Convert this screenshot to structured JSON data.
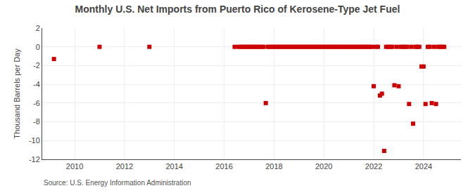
{
  "chart_data": {
    "type": "scatter",
    "title": "Monthly U.S. Net Imports from Puerto Rico of Kerosene-Type Jet Fuel",
    "ylabel": "Thousand Barrels per Day",
    "annotations": [
      "Source: U.S. Energy Information Administration"
    ],
    "color": "#cc0000",
    "marker": "square",
    "grid": true,
    "xlim": [
      2008.7,
      2025.5
    ],
    "xticks": [
      2010,
      2012,
      2014,
      2016,
      2018,
      2020,
      2022,
      2024
    ],
    "ylim": [
      -12,
      2
    ],
    "yticks": [
      2,
      0,
      -2,
      -4,
      -6,
      -8,
      -10,
      -12
    ],
    "x": [
      2009.17,
      2011.0,
      2013.0,
      2016.42,
      2016.58,
      2016.67,
      2016.75,
      2016.83,
      2016.92,
      2017.0,
      2017.08,
      2017.17,
      2017.25,
      2017.33,
      2017.42,
      2017.5,
      2017.58,
      2017.67,
      2017.75,
      2017.83,
      2017.92,
      2018.0,
      2018.08,
      2018.17,
      2018.25,
      2018.33,
      2018.42,
      2018.5,
      2018.58,
      2018.67,
      2018.75,
      2018.83,
      2018.92,
      2019.0,
      2019.08,
      2019.17,
      2019.25,
      2019.33,
      2019.42,
      2019.5,
      2019.58,
      2019.67,
      2019.75,
      2019.83,
      2019.92,
      2020.0,
      2020.08,
      2020.17,
      2020.25,
      2020.33,
      2020.42,
      2020.5,
      2020.58,
      2020.67,
      2020.75,
      2020.83,
      2020.92,
      2021.0,
      2021.08,
      2021.17,
      2021.25,
      2021.33,
      2021.42,
      2021.5,
      2021.58,
      2021.67,
      2021.75,
      2021.83,
      2021.92,
      2022.0,
      2022.08,
      2022.17,
      2022.25,
      2022.33,
      2022.42,
      2022.5,
      2022.58,
      2022.67,
      2022.75,
      2022.83,
      2022.92,
      2023.0,
      2023.08,
      2023.17,
      2023.25,
      2023.33,
      2023.42,
      2023.5,
      2023.58,
      2023.67,
      2023.75,
      2023.83,
      2023.92,
      2024.0,
      2024.08,
      2024.17,
      2024.25,
      2024.33,
      2024.42,
      2024.5,
      2024.58,
      2024.67,
      2024.75,
      2024.83
    ],
    "values": [
      -1.3,
      0.0,
      0.0,
      0.0,
      0.0,
      0.0,
      0.0,
      0.0,
      0.0,
      0.0,
      0.0,
      0.0,
      0.0,
      0.0,
      0.0,
      0.0,
      0.0,
      -6.0,
      0.0,
      0.0,
      0.0,
      0.0,
      0.0,
      0.0,
      0.0,
      0.0,
      0.0,
      0.0,
      0.0,
      0.0,
      0.0,
      0.0,
      0.0,
      0.0,
      0.0,
      0.0,
      0.0,
      0.0,
      0.0,
      0.0,
      0.0,
      0.0,
      0.0,
      0.0,
      0.0,
      0.0,
      0.0,
      0.0,
      0.0,
      0.0,
      0.0,
      0.0,
      0.0,
      0.0,
      0.0,
      0.0,
      0.0,
      0.0,
      0.0,
      0.0,
      0.0,
      0.0,
      0.0,
      0.0,
      0.0,
      0.0,
      0.0,
      0.0,
      0.0,
      -4.2,
      0.0,
      0.0,
      -5.2,
      -5.0,
      -11.1,
      0.0,
      0.0,
      0.0,
      0.0,
      -4.1,
      0.0,
      -4.2,
      0.0,
      0.0,
      0.0,
      0.0,
      -6.1,
      0.0,
      -8.2,
      0.0,
      0.0,
      0.0,
      -2.1,
      -2.1,
      -6.1,
      0.0,
      0.0,
      -6.0,
      0.0,
      -6.1,
      0.0,
      0.0,
      0.0,
      0.0
    ]
  }
}
